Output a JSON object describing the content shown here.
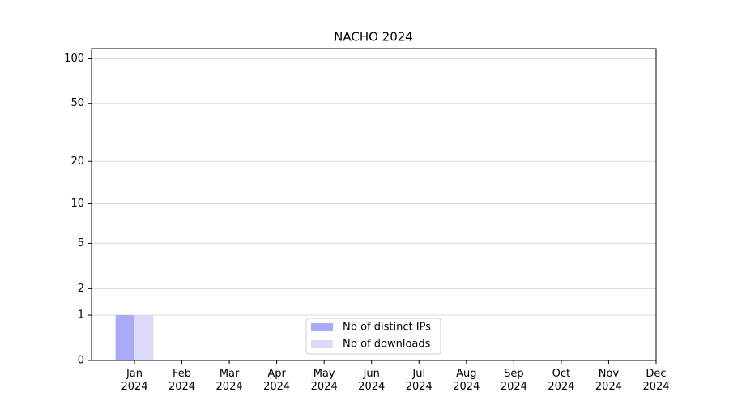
{
  "chart_data": {
    "type": "bar",
    "title": "NACHO 2024",
    "categories": [
      "Jan\n2024",
      "Feb\n2024",
      "Mar\n2024",
      "Apr\n2024",
      "May\n2024",
      "Jun\n2024",
      "Jul\n2024",
      "Aug\n2024",
      "Sep\n2024",
      "Oct\n2024",
      "Nov\n2024",
      "Dec\n2024"
    ],
    "series": [
      {
        "name": "Nb of distinct IPs",
        "color": "#aaaaf7",
        "values": [
          1,
          0,
          0,
          0,
          0,
          0,
          0,
          0,
          0,
          0,
          0,
          0
        ]
      },
      {
        "name": "Nb of downloads",
        "color": "#dcdcfa",
        "values": [
          1,
          0,
          0,
          0,
          0,
          0,
          0,
          0,
          0,
          0,
          0,
          0
        ]
      }
    ],
    "yscale": "log1p",
    "ylim": [
      0,
      117
    ],
    "yticks": [
      0,
      1,
      2,
      5,
      10,
      20,
      50,
      100
    ],
    "grid": true,
    "legend": "lower center"
  }
}
